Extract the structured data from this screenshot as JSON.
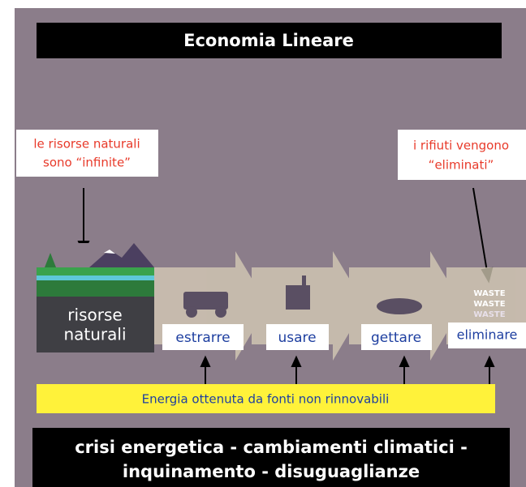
{
  "header": {
    "title": "Economia Lineare"
  },
  "notes": [
    {
      "lines": [
        "le risorse naturali",
        "sono “infinite”"
      ]
    },
    {
      "lines": [
        "i rifiuti vengono",
        "“eliminati”"
      ]
    }
  ],
  "source": {
    "lines": [
      "risorse",
      "naturali"
    ]
  },
  "steps": [
    "estrarre",
    "usare",
    "gettare",
    "eliminare"
  ],
  "waste": [
    "WASTE",
    "WASTE",
    "WASTE"
  ],
  "energy": "Energia ottenuta da fonti non rinnovabili",
  "footer": {
    "lines": [
      "crisi energetica - cambiamenti climatici -",
      "inquinamento - disuguaglianze"
    ]
  }
}
